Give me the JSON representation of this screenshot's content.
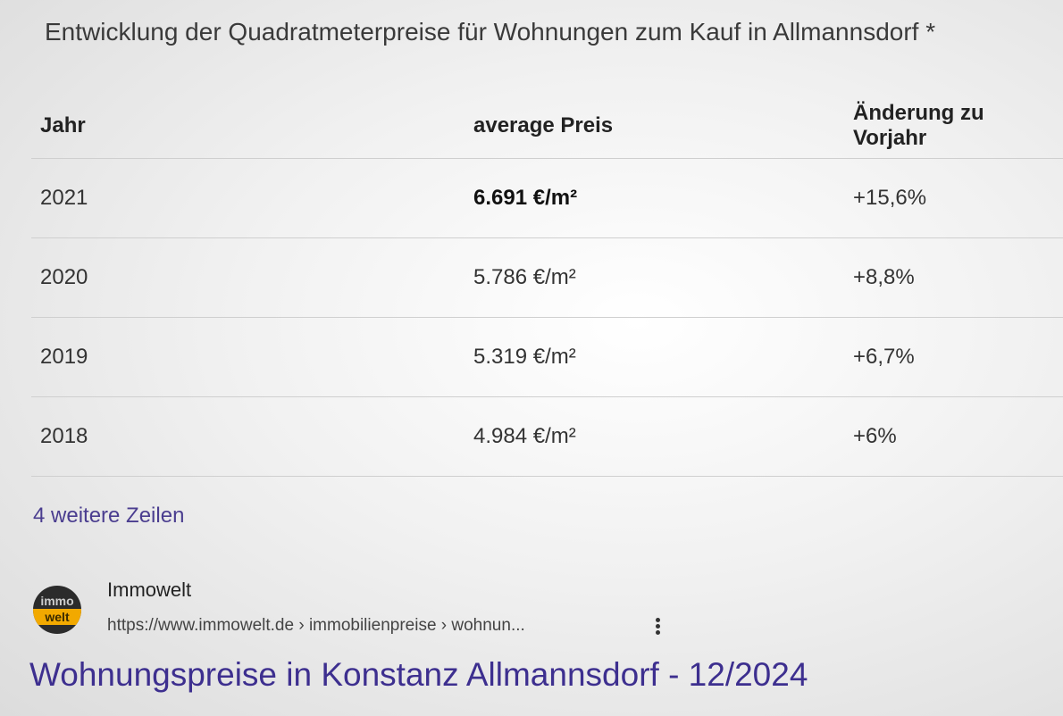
{
  "snippet": {
    "title": "Entwicklung der Quadratmeterpreise für Wohnungen zum Kauf in Allmannsdorf *",
    "table": {
      "headers": [
        "Jahr",
        "average Preis",
        "Änderung zu Vorjahr"
      ],
      "rows": [
        [
          "2021",
          "6.691 €/m²",
          "+15,6%"
        ],
        [
          "2020",
          "5.786 €/m²",
          "+8,8%"
        ],
        [
          "2019",
          "5.319 €/m²",
          "+6,7%"
        ],
        [
          "2018",
          "4.984 €/m²",
          "+6%"
        ]
      ]
    },
    "more_rows": "4 weitere Zeilen"
  },
  "source": {
    "logo_text": [
      "immo",
      "welt"
    ],
    "name": "Immowelt",
    "url": "https://www.immowelt.de › immobilienpreise › wohnun..."
  },
  "result_title": "Wohnungspreise in Konstanz Allmannsdorf - 12/2024"
}
